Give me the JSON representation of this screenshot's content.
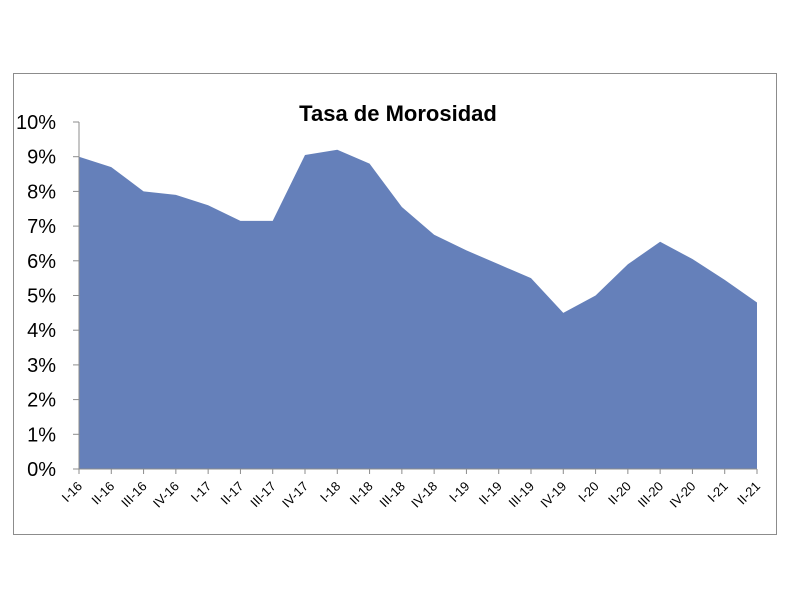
{
  "chart_data": {
    "type": "area",
    "title": "Tasa de Morosidad",
    "xlabel": "",
    "ylabel": "",
    "categories": [
      "I-16",
      "II-16",
      "III-16",
      "IV-16",
      "I-17",
      "II-17",
      "III-17",
      "IV-17",
      "I-18",
      "II-18",
      "III-18",
      "IV-18",
      "I-19",
      "II-19",
      "III-19",
      "IV-19",
      "I-20",
      "II-20",
      "III-20",
      "IV-20",
      "I-21",
      "II-21"
    ],
    "series": [
      {
        "values": [
          9.0,
          8.7,
          8.0,
          7.9,
          7.6,
          7.15,
          7.15,
          9.05,
          9.2,
          8.8,
          7.55,
          6.75,
          6.3,
          5.9,
          5.5,
          4.5,
          5.0,
          5.9,
          6.55,
          6.05,
          5.45,
          4.8
        ]
      }
    ],
    "ylim": [
      0,
      10
    ],
    "yticks": [
      "0%",
      "1%",
      "2%",
      "3%",
      "4%",
      "5%",
      "6%",
      "7%",
      "8%",
      "9%",
      "10%"
    ],
    "grid": false,
    "legend": "none",
    "colors": {
      "area": "#6580ba",
      "axis": "#8c8c8c",
      "frame": "#8c8c8c"
    }
  }
}
